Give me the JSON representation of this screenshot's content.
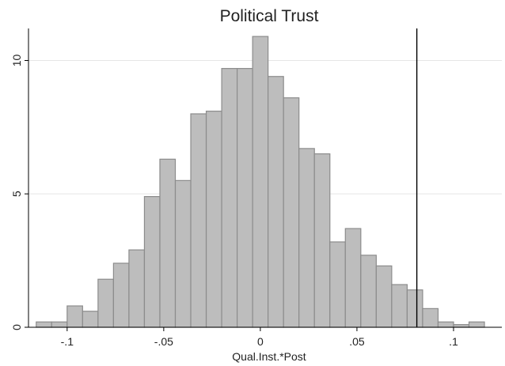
{
  "chart_data": {
    "type": "bar",
    "title": "Political Trust",
    "xlabel": "Qual.Inst.*Post",
    "ylabel": "",
    "xlim": [
      -0.12,
      0.125
    ],
    "ylim": [
      0,
      11.2
    ],
    "bin_width": 0.008,
    "x_ticks": [
      {
        "value": -0.1,
        "label": "-.1"
      },
      {
        "value": -0.05,
        "label": "-.05"
      },
      {
        "value": 0,
        "label": "0"
      },
      {
        "value": 0.05,
        "label": ".05"
      },
      {
        "value": 0.1,
        "label": ".1"
      }
    ],
    "y_ticks": [
      {
        "value": 0,
        "label": "0"
      },
      {
        "value": 5,
        "label": "5"
      },
      {
        "value": 10,
        "label": "10"
      }
    ],
    "grid": "horizontal",
    "bars": [
      {
        "x": -0.116,
        "y": 0.2
      },
      {
        "x": -0.108,
        "y": 0.2
      },
      {
        "x": -0.1,
        "y": 0.8
      },
      {
        "x": -0.092,
        "y": 0.6
      },
      {
        "x": -0.084,
        "y": 1.8
      },
      {
        "x": -0.076,
        "y": 2.4
      },
      {
        "x": -0.068,
        "y": 2.9
      },
      {
        "x": -0.06,
        "y": 4.9
      },
      {
        "x": -0.052,
        "y": 6.3
      },
      {
        "x": -0.044,
        "y": 5.5
      },
      {
        "x": -0.036,
        "y": 8.0
      },
      {
        "x": -0.028,
        "y": 8.1
      },
      {
        "x": -0.02,
        "y": 9.7
      },
      {
        "x": -0.012,
        "y": 9.7
      },
      {
        "x": -0.004,
        "y": 10.9
      },
      {
        "x": 0.004,
        "y": 9.4
      },
      {
        "x": 0.012,
        "y": 8.6
      },
      {
        "x": 0.02,
        "y": 6.7
      },
      {
        "x": 0.028,
        "y": 6.5
      },
      {
        "x": 0.036,
        "y": 3.2
      },
      {
        "x": 0.044,
        "y": 3.7
      },
      {
        "x": 0.052,
        "y": 2.7
      },
      {
        "x": 0.06,
        "y": 2.3
      },
      {
        "x": 0.068,
        "y": 1.6
      },
      {
        "x": 0.076,
        "y": 1.4
      },
      {
        "x": 0.084,
        "y": 0.7
      },
      {
        "x": 0.092,
        "y": 0.2
      },
      {
        "x": 0.1,
        "y": 0.1
      },
      {
        "x": 0.108,
        "y": 0.2
      }
    ],
    "reference_line_x": 0.081,
    "colors": {
      "bar_fill": "#bdbdbd",
      "bar_stroke": "#8c8c8c",
      "grid": "#e6e6e6",
      "axis": "#000000",
      "reference_line": "#000000"
    }
  }
}
